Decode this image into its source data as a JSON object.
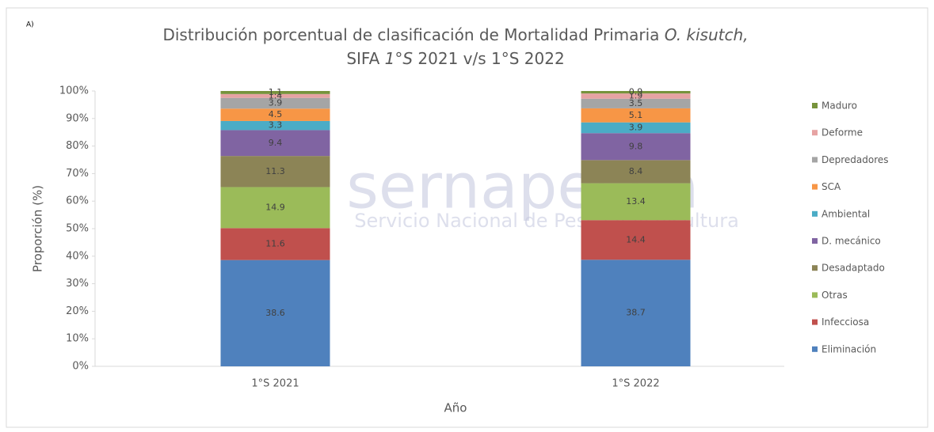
{
  "chart_data": {
    "type": "stacked_bar",
    "annotation": "A)",
    "title": [
      [
        {
          "text": "Distribución porcentual de clasificación de Mortalidad Primaria ",
          "italic": false
        },
        {
          "text": "O. kisutch,",
          "italic": true
        }
      ],
      [
        {
          "text": "SIFA ",
          "italic": false
        },
        {
          "text": "1°S",
          "italic": true
        },
        {
          "text": " 2021 v/s 1°S 2022",
          "italic": false
        }
      ]
    ],
    "watermark": [
      "sernapesca",
      "Servicio Nacional de Pesca y Acuicultura"
    ],
    "x_label": "Año",
    "y_label": "Proporción (%)",
    "categories": [
      "1°S 2021",
      "1°S 2022"
    ],
    "series": [
      {
        "name": "Eliminación",
        "color": "#4f81bd",
        "values": [
          38.6,
          38.7
        ]
      },
      {
        "name": "Infecciosa",
        "color": "#c0504d",
        "values": [
          11.6,
          14.4
        ]
      },
      {
        "name": "Otras",
        "color": "#9bbb59",
        "values": [
          14.9,
          13.4
        ]
      },
      {
        "name": "Desadaptado",
        "color": "#8c8456",
        "values": [
          11.3,
          8.4
        ]
      },
      {
        "name": "D. mecánico",
        "color": "#8064a2",
        "values": [
          9.4,
          9.8
        ]
      },
      {
        "name": "Ambiental",
        "color": "#4bacc6",
        "values": [
          3.3,
          3.9
        ]
      },
      {
        "name": "SCA",
        "color": "#f79646",
        "values": [
          4.5,
          5.1
        ]
      },
      {
        "name": "Depredadores",
        "color": "#a5a5a5",
        "values": [
          3.9,
          3.5
        ]
      },
      {
        "name": "Deforme",
        "color": "#e6a3a3",
        "values": [
          1.4,
          1.9
        ]
      },
      {
        "name": "Maduro",
        "color": "#77933c",
        "values": [
          1.1,
          0.9
        ]
      }
    ],
    "ylim": [
      0,
      100
    ],
    "yticks": [
      {
        "value": 0,
        "label": "0%"
      },
      {
        "value": 10,
        "label": "10%"
      },
      {
        "value": 20,
        "label": "20%"
      },
      {
        "value": 30,
        "label": "30%"
      },
      {
        "value": 40,
        "label": "40%"
      },
      {
        "value": 50,
        "label": "50%"
      },
      {
        "value": 60,
        "label": "60%"
      },
      {
        "value": 70,
        "label": "70%"
      },
      {
        "value": 80,
        "label": "80%"
      },
      {
        "value": 90,
        "label": "90%"
      },
      {
        "value": 100,
        "label": "100%"
      }
    ],
    "legend": "right"
  }
}
